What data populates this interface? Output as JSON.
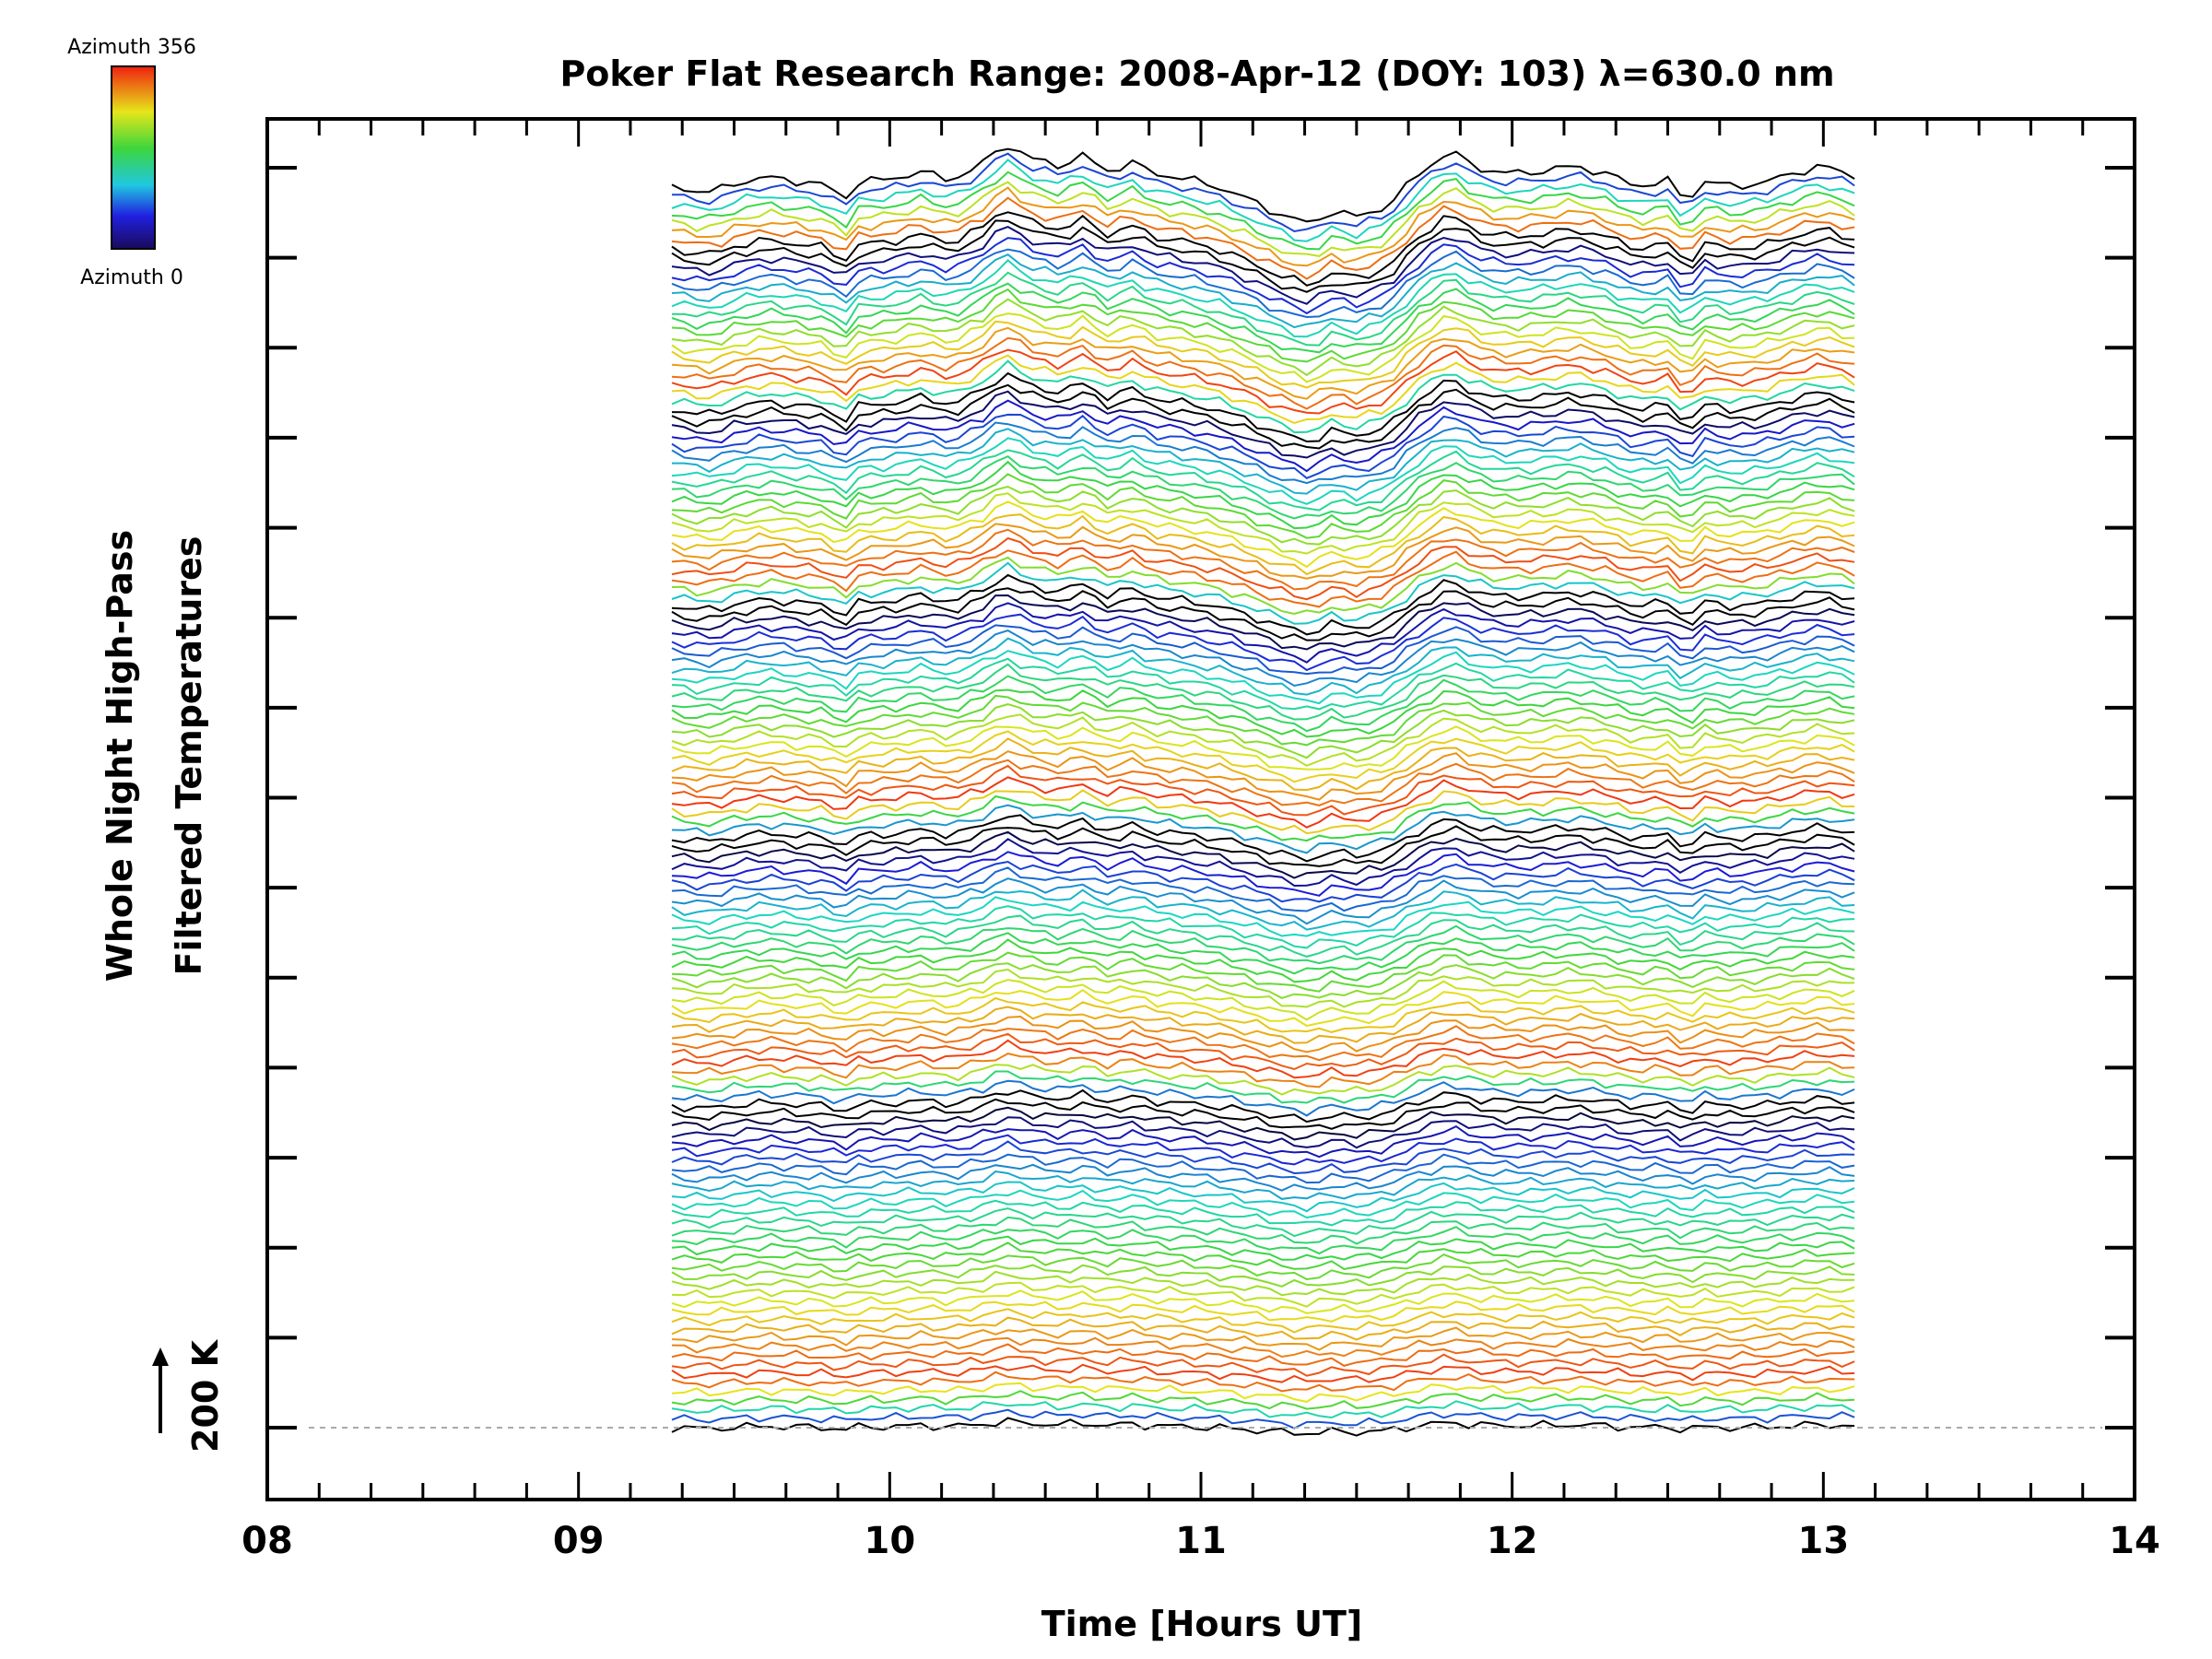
{
  "chart_data": {
    "type": "line",
    "title": "Poker Flat Research Range: 2008-Apr-12 (DOY: 103) λ=630.0 nm",
    "xlabel": "Time [Hours UT]",
    "ylabel_line1": "Whole Night High-Pass",
    "ylabel_line2": "Filtered Temperatures",
    "scale_bar_label": "200 K",
    "xlim": [
      8,
      14
    ],
    "x_tick_labels": [
      "08",
      "09",
      "10",
      "11",
      "12",
      "13",
      "14"
    ],
    "x_minor_ticks_per_hour": 6,
    "y_major_tick_count": 15,
    "legend": {
      "type": "colorbar",
      "top_label": "Azimuth 356",
      "bottom_label": "Azimuth 0",
      "range": [
        0,
        356
      ],
      "placement": "top-left"
    },
    "baseline_dashed": true,
    "series_time_range": [
      9.3,
      13.1
    ],
    "series_count": 140,
    "azimuth_cycle_lengths": [
      36,
      30,
      26,
      22,
      18,
      8
    ],
    "colors": {
      "azimuth_0": "#000000",
      "azimuth_low": "#1a1ad6",
      "azimuth_mid": "#1ad6c8",
      "azimuth_green": "#3cd63c",
      "azimuth_yellow": "#e6e61a",
      "azimuth_356": "#f03010",
      "baseline": "#aaaaaa"
    },
    "base_temperature_profile": {
      "t": [
        9.3,
        9.4,
        9.45,
        9.5,
        9.6,
        9.7,
        9.8,
        9.85,
        9.9,
        10.0,
        10.1,
        10.2,
        10.3,
        10.37,
        10.45,
        10.55,
        10.62,
        10.7,
        10.78,
        10.85,
        10.95,
        11.05,
        11.15,
        11.25,
        11.35,
        11.42,
        11.5,
        11.6,
        11.7,
        11.8,
        11.85,
        11.92,
        12.0,
        12.1,
        12.2,
        12.3,
        12.4,
        12.5,
        12.56,
        12.62,
        12.7,
        12.8,
        12.9,
        13.0,
        13.1
      ],
      "v": [
        0,
        -12,
        -8,
        5,
        18,
        10,
        2,
        -28,
        8,
        14,
        28,
        12,
        45,
        85,
        55,
        40,
        60,
        30,
        46,
        25,
        15,
        0,
        -25,
        -55,
        -75,
        -50,
        -60,
        -40,
        25,
        70,
        50,
        30,
        25,
        30,
        40,
        25,
        0,
        10,
        -30,
        10,
        0,
        5,
        25,
        40,
        20
      ]
    }
  }
}
